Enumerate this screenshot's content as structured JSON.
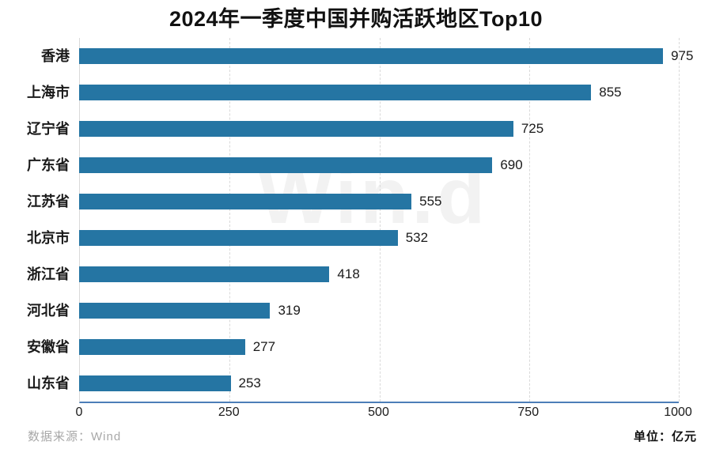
{
  "title": "2024年一季度中国并购活跃地区Top10",
  "watermark": "Win.d",
  "footer": {
    "source": "数据来源：Wind",
    "unit": "单位：亿元"
  },
  "chart_data": {
    "type": "bar",
    "orientation": "horizontal",
    "title": "2024年一季度中国并购活跃地区Top10",
    "categories": [
      "香港",
      "上海市",
      "辽宁省",
      "广东省",
      "江苏省",
      "北京市",
      "浙江省",
      "河北省",
      "安徽省",
      "山东省"
    ],
    "values": [
      975,
      855,
      725,
      690,
      555,
      532,
      418,
      319,
      277,
      253
    ],
    "xlabel": "",
    "ylabel": "",
    "xlim": [
      0,
      1000
    ],
    "xticks": [
      0,
      250,
      500,
      750,
      1000
    ],
    "grid": "vertical-dashed",
    "legend": "none",
    "value_labels": "end-of-bar",
    "unit_label": "单位：亿元",
    "source_label": "数据来源：Wind",
    "colors": {
      "bar": "#2575a3",
      "axis_baseline": "#4c7eb8",
      "axis_line": "#d9d9d9",
      "gridline": "#d9d9d9",
      "watermark": "#f2f2f2",
      "text": "#1a1a1a",
      "source_text": "#a8a8a8"
    }
  }
}
